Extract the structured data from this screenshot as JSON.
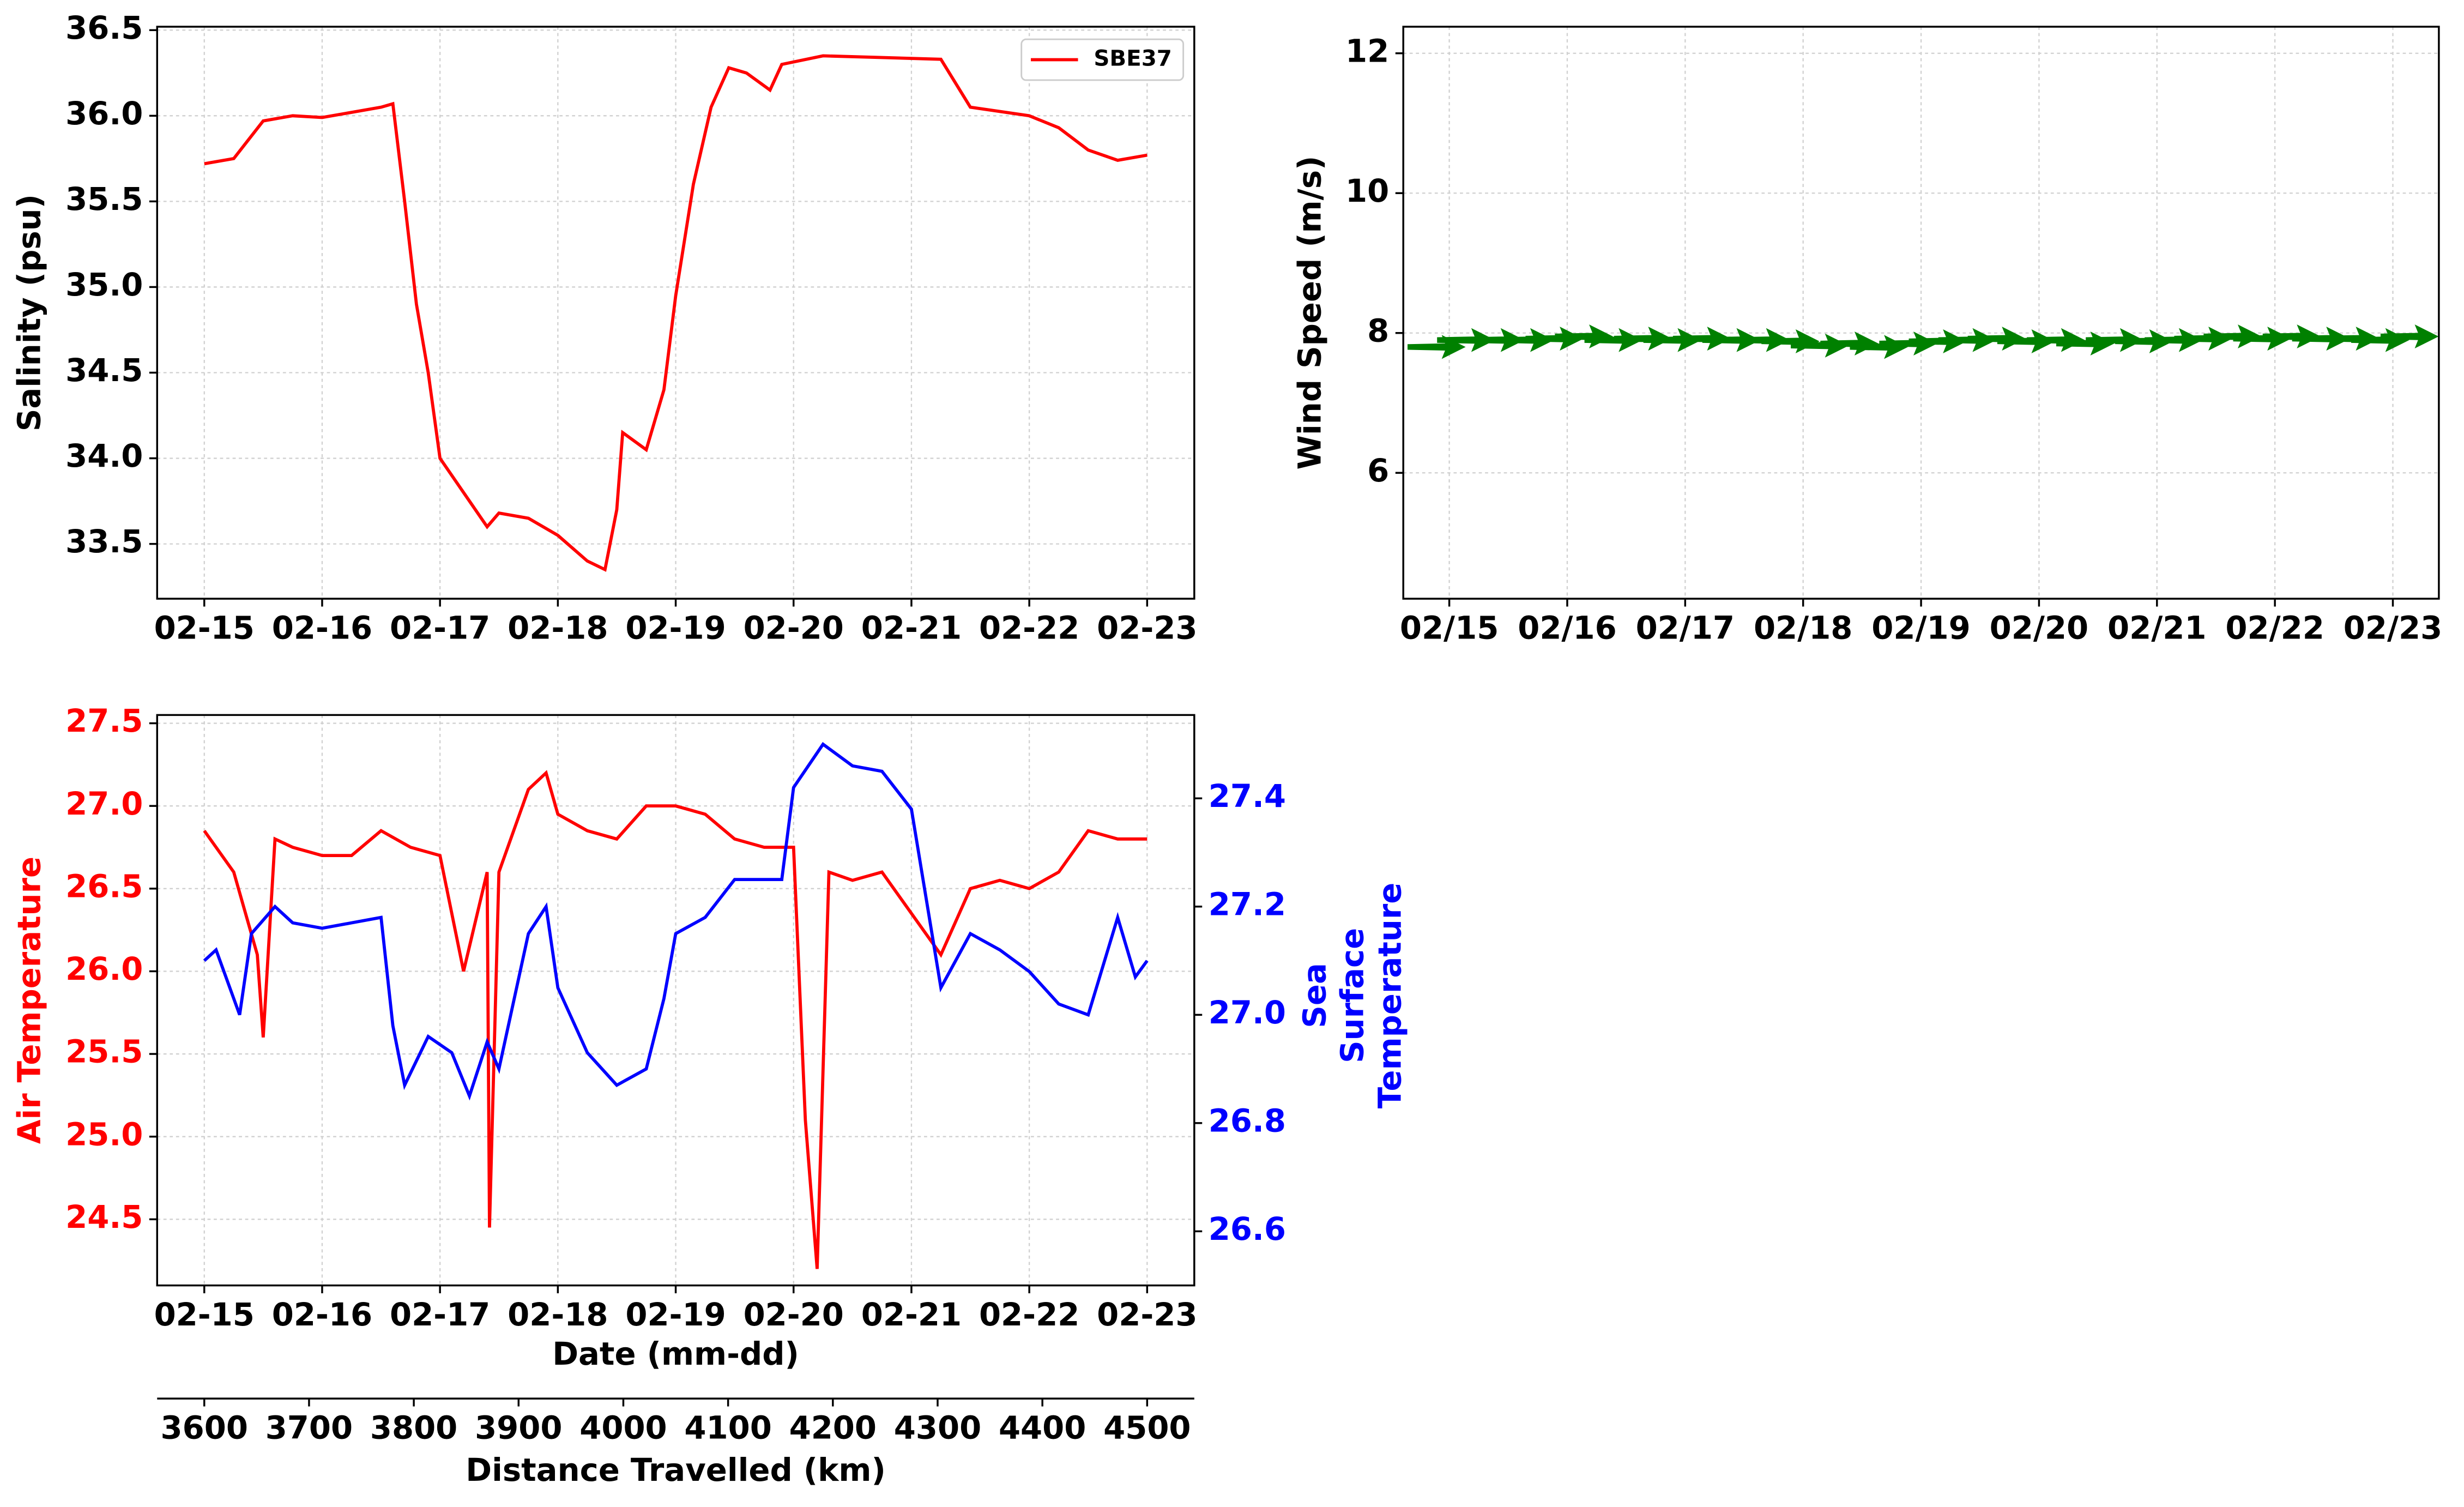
{
  "chart_data": [
    {
      "type": "line",
      "ylabel": "Salinity (psu)",
      "grid": true,
      "legend": "upper right",
      "xlim": [
        14.6,
        23.4
      ],
      "xticks": [
        {
          "value": 15,
          "label": "02-15"
        },
        {
          "value": 16,
          "label": "02-16"
        },
        {
          "value": 17,
          "label": "02-17"
        },
        {
          "value": 18,
          "label": "02-18"
        },
        {
          "value": 19,
          "label": "02-19"
        },
        {
          "value": 20,
          "label": "02-20"
        },
        {
          "value": 21,
          "label": "02-21"
        },
        {
          "value": 22,
          "label": "02-22"
        },
        {
          "value": 23,
          "label": "02-23"
        }
      ],
      "ylim": [
        33.18,
        36.52
      ],
      "yticks": [
        33.5,
        {
          "value": 34,
          "label": "34.0"
        },
        34.5,
        {
          "value": 35,
          "label": "35.0"
        },
        35.5,
        {
          "value": 36,
          "label": "36.0"
        },
        36.5
      ],
      "series": [
        {
          "name": "SBE37",
          "color": "#ff0000",
          "x": [
            15,
            15.25,
            15.5,
            15.75,
            16,
            16.25,
            16.5,
            16.6,
            16.7,
            16.8,
            16.9,
            17,
            17.25,
            17.4,
            17.5,
            17.75,
            18,
            18.25,
            18.4,
            18.5,
            18.55,
            18.75,
            18.9,
            19,
            19.15,
            19.3,
            19.45,
            19.6,
            19.8,
            19.9,
            20.25,
            20.75,
            21.25,
            21.5,
            22,
            22.25,
            22.5,
            22.75,
            23
          ],
          "values": [
            35.72,
            35.75,
            35.97,
            36.0,
            35.99,
            36.02,
            36.05,
            36.07,
            35.5,
            34.9,
            34.5,
            34.0,
            33.75,
            33.6,
            33.68,
            33.65,
            33.55,
            33.4,
            33.35,
            33.7,
            34.15,
            34.05,
            34.4,
            34.95,
            35.6,
            36.05,
            36.28,
            36.25,
            36.15,
            36.3,
            36.35,
            36.34,
            36.33,
            36.05,
            36.0,
            35.93,
            35.8,
            35.74,
            35.77
          ]
        }
      ]
    },
    {
      "type": "quiver",
      "ylabel": "Wind Speed (m/s)",
      "grid": true,
      "xlim": [
        14.61,
        23.39
      ],
      "xticks": [
        {
          "value": 15,
          "label": "02/15"
        },
        {
          "value": 16,
          "label": "02/16"
        },
        {
          "value": 17,
          "label": "02/17"
        },
        {
          "value": 18,
          "label": "02/18"
        },
        {
          "value": 19,
          "label": "02/19"
        },
        {
          "value": 20,
          "label": "02/20"
        },
        {
          "value": 21,
          "label": "02/21"
        },
        {
          "value": 22,
          "label": "02/22"
        },
        {
          "value": 23,
          "label": "02/23"
        }
      ],
      "ylim": [
        4.2,
        12.38
      ],
      "yticks": [
        6,
        8,
        10,
        12
      ],
      "series": [
        {
          "color": "#008000",
          "x": [
            14.65,
            14.9,
            15.15,
            15.4,
            15.65,
            15.9,
            16.15,
            16.4,
            16.65,
            16.9,
            17.15,
            17.4,
            17.65,
            17.9,
            18.15,
            18.4,
            18.65,
            18.9,
            19.15,
            19.4,
            19.65,
            19.9,
            20.15,
            20.4,
            20.65,
            20.9,
            21.15,
            21.4,
            21.65,
            21.9,
            22.15,
            22.4,
            22.65,
            22.9
          ],
          "values": [
            7.8,
            7.9,
            7.9,
            7.9,
            7.92,
            7.95,
            7.9,
            7.92,
            7.9,
            7.92,
            7.9,
            7.9,
            7.88,
            7.82,
            7.85,
            7.8,
            7.85,
            7.88,
            7.9,
            7.92,
            7.88,
            7.9,
            7.85,
            7.9,
            7.88,
            7.9,
            7.92,
            7.95,
            7.92,
            7.95,
            7.92,
            7.92,
            7.9,
            7.95
          ]
        }
      ]
    },
    {
      "type": "line",
      "ylabel": "Air Temperature",
      "y2label": [
        "Sea",
        "Surface",
        "Temperature"
      ],
      "xlabel": "Date (mm-dd)",
      "grid": true,
      "xlim": [
        14.6,
        23.4
      ],
      "xticks": [
        {
          "value": 15,
          "label": "02-15"
        },
        {
          "value": 16,
          "label": "02-16"
        },
        {
          "value": 17,
          "label": "02-17"
        },
        {
          "value": 18,
          "label": "02-18"
        },
        {
          "value": 19,
          "label": "02-19"
        },
        {
          "value": 20,
          "label": "02-20"
        },
        {
          "value": 21,
          "label": "02-21"
        },
        {
          "value": 22,
          "label": "02-22"
        },
        {
          "value": 23,
          "label": "02-23"
        }
      ],
      "ylim": [
        24.1,
        27.55
      ],
      "yticks": [
        24.5,
        {
          "value": 25,
          "label": "25.0"
        },
        25.5,
        {
          "value": 26,
          "label": "26.0"
        },
        26.5,
        {
          "value": 27,
          "label": "27.0"
        },
        27.5
      ],
      "y2lim": [
        26.5,
        27.554
      ],
      "y2ticks": [
        26.6,
        26.8,
        {
          "value": 27,
          "label": "27.0"
        },
        27.2,
        27.4
      ],
      "x2label": "Distance Travelled (km)",
      "x2lim": [
        3555,
        4545
      ],
      "x2ticks": [
        3600,
        3700,
        3800,
        3900,
        4000,
        4100,
        4200,
        4300,
        4400,
        4500
      ],
      "series": [
        {
          "color": "#ff0000",
          "x": [
            15,
            15.25,
            15.45,
            15.5,
            15.6,
            15.75,
            16,
            16.25,
            16.5,
            16.75,
            17,
            17.2,
            17.4,
            17.42,
            17.5,
            17.75,
            17.9,
            18,
            18.25,
            18.5,
            18.75,
            19,
            19.25,
            19.5,
            19.75,
            20,
            20.1,
            20.2,
            20.3,
            20.5,
            20.75,
            21,
            21.25,
            21.5,
            21.75,
            22,
            22.25,
            22.5,
            22.75,
            23
          ],
          "values": [
            26.85,
            26.6,
            26.1,
            25.6,
            26.8,
            26.75,
            26.7,
            26.7,
            26.85,
            26.75,
            26.7,
            26.0,
            26.6,
            24.45,
            26.6,
            27.1,
            27.2,
            26.95,
            26.85,
            26.8,
            27.0,
            27.0,
            26.95,
            26.8,
            26.75,
            26.75,
            25.1,
            24.2,
            26.6,
            26.55,
            26.6,
            26.35,
            26.1,
            26.5,
            26.55,
            26.5,
            26.6,
            26.85,
            26.8,
            26.8
          ]
        },
        {
          "color": "#0000ff",
          "axis": "y2",
          "x": [
            15,
            15.1,
            15.3,
            15.4,
            15.6,
            15.75,
            16,
            16.25,
            16.5,
            16.6,
            16.7,
            16.9,
            17.1,
            17.25,
            17.4,
            17.5,
            17.75,
            17.9,
            18,
            18.25,
            18.5,
            18.75,
            18.9,
            19,
            19.25,
            19.5,
            19.75,
            19.9,
            20,
            20.25,
            20.5,
            20.75,
            21,
            21.25,
            21.5,
            21.75,
            22,
            22.25,
            22.5,
            22.75,
            22.9,
            23
          ],
          "values": [
            27.1,
            27.12,
            27.0,
            27.15,
            27.2,
            27.17,
            27.16,
            27.17,
            27.18,
            26.98,
            26.87,
            26.96,
            26.93,
            26.85,
            26.95,
            26.9,
            27.15,
            27.2,
            27.05,
            26.93,
            26.87,
            26.9,
            27.03,
            27.15,
            27.18,
            27.25,
            27.25,
            27.25,
            27.42,
            27.5,
            27.46,
            27.45,
            27.38,
            27.05,
            27.15,
            27.12,
            27.08,
            27.02,
            27.0,
            27.18,
            27.07,
            27.1
          ]
        }
      ]
    }
  ]
}
